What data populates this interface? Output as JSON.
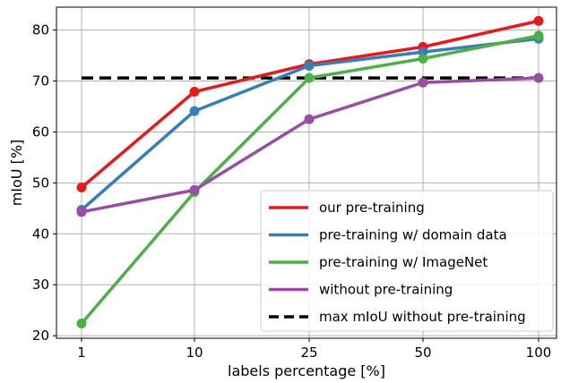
{
  "chart_data": {
    "type": "line",
    "categories": [
      "1",
      "10",
      "25",
      "50",
      "100"
    ],
    "xlabel": "labels percentage [%]",
    "ylabel": "mIoU [%]",
    "ylim": [
      19.5,
      84.5
    ],
    "yticks": [
      20,
      30,
      40,
      50,
      60,
      70,
      80
    ],
    "grid": true,
    "legend_position": "bottom-right",
    "series": [
      {
        "name": "our pre-training",
        "color": "#e41a1c",
        "values": [
          49.1,
          67.9,
          73.3,
          76.7,
          81.8
        ]
      },
      {
        "name": "pre-training w/ domain data",
        "color": "#377eb8",
        "values": [
          44.7,
          64.1,
          73.0,
          75.7,
          78.3
        ]
      },
      {
        "name": "pre-training w/ ImageNet",
        "color": "#4daf4a",
        "values": [
          22.4,
          48.2,
          70.6,
          74.4,
          78.9
        ]
      },
      {
        "name": "without pre-training",
        "color": "#984ea3",
        "values": [
          44.3,
          48.6,
          62.5,
          69.7,
          70.6
        ]
      }
    ],
    "reference_line": {
      "name": "max mIoU without pre-training",
      "value": 70.6,
      "color": "#000000",
      "style": "dashed"
    }
  }
}
